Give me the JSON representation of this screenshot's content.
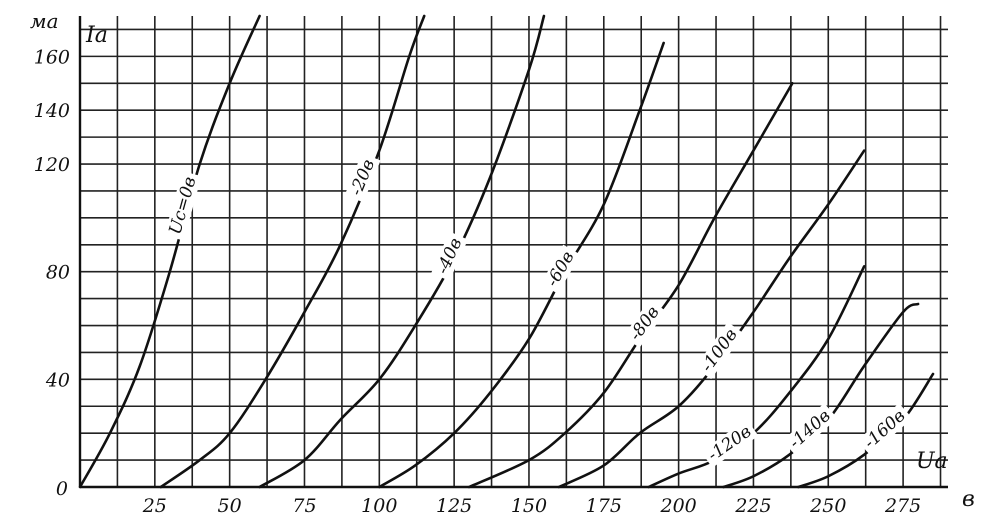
{
  "chart_data": {
    "type": "line",
    "y_unit": "ма",
    "y_label": "Iа",
    "x_unit": "в",
    "x_label": "Uа",
    "xlim": [
      0,
      290
    ],
    "ylim": [
      0,
      175
    ],
    "x_ticks": [
      25,
      50,
      75,
      100,
      125,
      150,
      175,
      200,
      225,
      250,
      275
    ],
    "y_ticks": [
      40,
      80,
      120,
      140,
      160
    ],
    "origin_label": "0",
    "grid": true,
    "grid_x_step": 12.5,
    "grid_y_step": 10,
    "series": [
      {
        "name": "Uс=0в",
        "label_at": 36,
        "points": [
          [
            0,
            0
          ],
          [
            10,
            20
          ],
          [
            20,
            45
          ],
          [
            30,
            80
          ],
          [
            40,
            120
          ],
          [
            50,
            150
          ],
          [
            60,
            175
          ]
        ]
      },
      {
        "name": "-20в",
        "label_at": 96,
        "points": [
          [
            27,
            0
          ],
          [
            40,
            10
          ],
          [
            50,
            20
          ],
          [
            62,
            40
          ],
          [
            75,
            65
          ],
          [
            87,
            90
          ],
          [
            100,
            125
          ],
          [
            110,
            160
          ],
          [
            115,
            175
          ]
        ]
      },
      {
        "name": "-40в",
        "label_at": 125,
        "points": [
          [
            60,
            0
          ],
          [
            75,
            10
          ],
          [
            87,
            25
          ],
          [
            100,
            40
          ],
          [
            112,
            60
          ],
          [
            125,
            85
          ],
          [
            137,
            115
          ],
          [
            150,
            155
          ],
          [
            155,
            175
          ]
        ]
      },
      {
        "name": "-60в",
        "label_at": 162,
        "points": [
          [
            100,
            0
          ],
          [
            112,
            8
          ],
          [
            125,
            20
          ],
          [
            137,
            35
          ],
          [
            150,
            55
          ],
          [
            162,
            80
          ],
          [
            175,
            105
          ],
          [
            187,
            140
          ],
          [
            195,
            165
          ]
        ]
      },
      {
        "name": "-80в",
        "label_at": 190,
        "points": [
          [
            130,
            0
          ],
          [
            150,
            10
          ],
          [
            162,
            20
          ],
          [
            175,
            35
          ],
          [
            187,
            55
          ],
          [
            200,
            75
          ],
          [
            212,
            100
          ],
          [
            225,
            125
          ],
          [
            238,
            150
          ]
        ]
      },
      {
        "name": "-100в",
        "label_at": 215,
        "points": [
          [
            160,
            0
          ],
          [
            175,
            8
          ],
          [
            187,
            20
          ],
          [
            200,
            30
          ],
          [
            212,
            45
          ],
          [
            225,
            65
          ],
          [
            237,
            85
          ],
          [
            250,
            105
          ],
          [
            262,
            125
          ]
        ]
      },
      {
        "name": "-120в",
        "label_at": 218,
        "points": [
          [
            190,
            0
          ],
          [
            200,
            5
          ],
          [
            212,
            10
          ],
          [
            225,
            20
          ],
          [
            237,
            35
          ],
          [
            250,
            55
          ],
          [
            262,
            82
          ]
        ]
      },
      {
        "name": "-140в",
        "label_at": 245,
        "points": [
          [
            215,
            0
          ],
          [
            225,
            4
          ],
          [
            237,
            12
          ],
          [
            250,
            25
          ],
          [
            262,
            45
          ],
          [
            275,
            65
          ],
          [
            280,
            68
          ]
        ]
      },
      {
        "name": "-160в",
        "label_at": 270,
        "points": [
          [
            240,
            0
          ],
          [
            250,
            4
          ],
          [
            262,
            12
          ],
          [
            275,
            25
          ],
          [
            285,
            42
          ]
        ]
      }
    ]
  }
}
